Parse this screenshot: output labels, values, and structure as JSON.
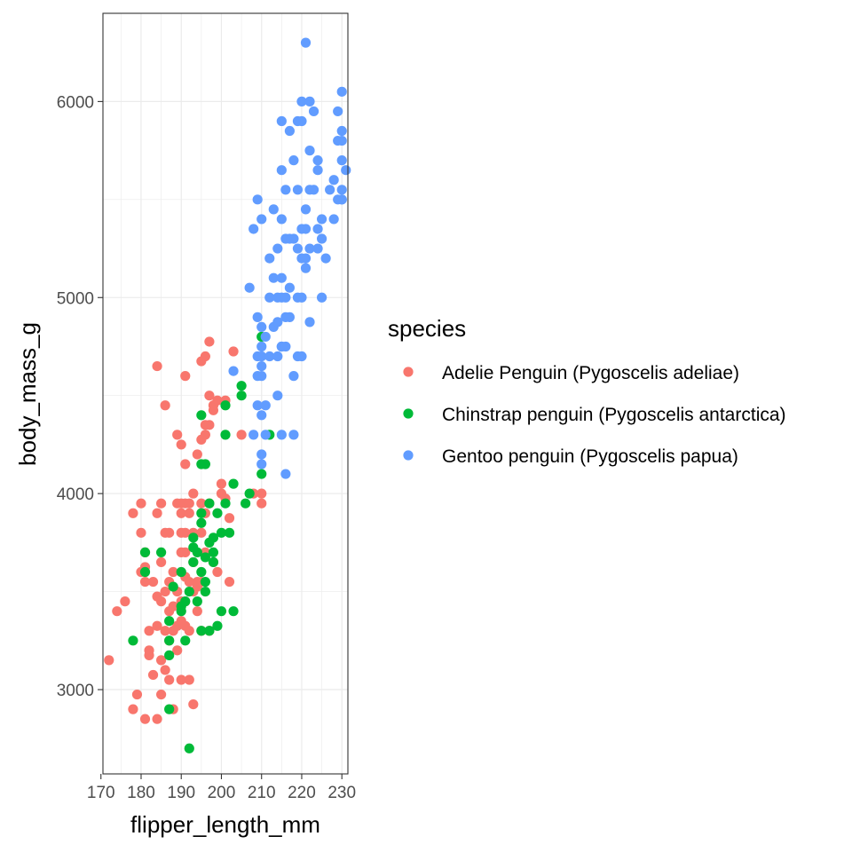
{
  "chart_data": {
    "type": "scatter",
    "xlabel": "flipper_length_mm",
    "ylabel": "body_mass_g",
    "xlim": [
      170.5,
      231.5
    ],
    "ylim": [
      2570,
      6450
    ],
    "x_ticks": [
      170,
      180,
      190,
      200,
      210,
      220,
      230
    ],
    "y_ticks": [
      3000,
      4000,
      5000,
      6000
    ],
    "grid": true,
    "legend": {
      "title": "species",
      "placement": "right"
    },
    "series": [
      {
        "name": "Adelie Penguin (Pygoscelis adeliae)",
        "color": "#F8766D",
        "points": [
          [
            172,
            3150
          ],
          [
            174,
            3400
          ],
          [
            176,
            3450
          ],
          [
            178,
            3900
          ],
          [
            178,
            2900
          ],
          [
            179,
            2975
          ],
          [
            180,
            3950
          ],
          [
            180,
            3800
          ],
          [
            180,
            3600
          ],
          [
            181,
            3700
          ],
          [
            181,
            3625
          ],
          [
            181,
            3550
          ],
          [
            181,
            2850
          ],
          [
            182,
            3175
          ],
          [
            182,
            3300
          ],
          [
            182,
            3200
          ],
          [
            183,
            3550
          ],
          [
            183,
            3075
          ],
          [
            184,
            3900
          ],
          [
            184,
            3475
          ],
          [
            184,
            3325
          ],
          [
            184,
            4650
          ],
          [
            184,
            2850
          ],
          [
            185,
            3950
          ],
          [
            185,
            3650
          ],
          [
            185,
            3150
          ],
          [
            185,
            3450
          ],
          [
            185,
            2975
          ],
          [
            186,
            3800
          ],
          [
            186,
            3300
          ],
          [
            186,
            3500
          ],
          [
            186,
            4450
          ],
          [
            186,
            3100
          ],
          [
            187,
            3800
          ],
          [
            187,
            3550
          ],
          [
            187,
            3400
          ],
          [
            187,
            3250
          ],
          [
            187,
            3050
          ],
          [
            188,
            3300
          ],
          [
            188,
            3600
          ],
          [
            188,
            3425
          ],
          [
            188,
            2900
          ],
          [
            189,
            3500
          ],
          [
            189,
            3950
          ],
          [
            189,
            3200
          ],
          [
            189,
            3325
          ],
          [
            189,
            4300
          ],
          [
            190,
            3800
          ],
          [
            190,
            3350
          ],
          [
            190,
            3450
          ],
          [
            190,
            3950
          ],
          [
            190,
            4250
          ],
          [
            190,
            3050
          ],
          [
            190,
            3700
          ],
          [
            190,
            3900
          ],
          [
            191,
            3800
          ],
          [
            191,
            3450
          ],
          [
            191,
            3700
          ],
          [
            191,
            4600
          ],
          [
            191,
            3950
          ],
          [
            191,
            3575
          ],
          [
            191,
            4150
          ],
          [
            191,
            3325
          ],
          [
            192,
            3900
          ],
          [
            192,
            3300
          ],
          [
            192,
            3050
          ],
          [
            192,
            3950
          ],
          [
            192,
            3550
          ],
          [
            193,
            3500
          ],
          [
            193,
            4000
          ],
          [
            193,
            3800
          ],
          [
            193,
            3650
          ],
          [
            193,
            2925
          ],
          [
            194,
            3400
          ],
          [
            194,
            3525
          ],
          [
            194,
            4200
          ],
          [
            194,
            3550
          ],
          [
            195,
            3800
          ],
          [
            195,
            3950
          ],
          [
            195,
            3300
          ],
          [
            195,
            3550
          ],
          [
            195,
            4675
          ],
          [
            195,
            4275
          ],
          [
            196,
            3700
          ],
          [
            196,
            4700
          ],
          [
            196,
            4350
          ],
          [
            196,
            3900
          ],
          [
            196,
            4300
          ],
          [
            197,
            3950
          ],
          [
            197,
            4350
          ],
          [
            197,
            4500
          ],
          [
            197,
            3300
          ],
          [
            197,
            4775
          ],
          [
            198,
            4450
          ],
          [
            198,
            3650
          ],
          [
            198,
            4425
          ],
          [
            199,
            4475
          ],
          [
            199,
            3600
          ],
          [
            200,
            4050
          ],
          [
            200,
            4000
          ],
          [
            201,
            3975
          ],
          [
            201,
            4475
          ],
          [
            202,
            3550
          ],
          [
            202,
            3875
          ],
          [
            203,
            4725
          ],
          [
            205,
            4300
          ],
          [
            208,
            4000
          ],
          [
            210,
            4000
          ],
          [
            210,
            3950
          ]
        ]
      },
      {
        "name": "Chinstrap penguin (Pygoscelis antarctica)",
        "color": "#00BA38",
        "points": [
          [
            178,
            3250
          ],
          [
            181,
            3600
          ],
          [
            181,
            3700
          ],
          [
            185,
            3700
          ],
          [
            187,
            3350
          ],
          [
            187,
            3250
          ],
          [
            187,
            3175
          ],
          [
            187,
            2900
          ],
          [
            188,
            3525
          ],
          [
            190,
            3600
          ],
          [
            190,
            3400
          ],
          [
            190,
            3425
          ],
          [
            191,
            3250
          ],
          [
            191,
            3450
          ],
          [
            192,
            3500
          ],
          [
            192,
            2700
          ],
          [
            193,
            3650
          ],
          [
            193,
            3725
          ],
          [
            193,
            3775
          ],
          [
            194,
            3450
          ],
          [
            194,
            3700
          ],
          [
            195,
            3900
          ],
          [
            195,
            3850
          ],
          [
            195,
            3600
          ],
          [
            195,
            3300
          ],
          [
            195,
            4150
          ],
          [
            195,
            4400
          ],
          [
            196,
            3550
          ],
          [
            196,
            4150
          ],
          [
            196,
            3500
          ],
          [
            196,
            3675
          ],
          [
            197,
            3750
          ],
          [
            197,
            3950
          ],
          [
            197,
            3300
          ],
          [
            198,
            3775
          ],
          [
            198,
            3700
          ],
          [
            198,
            3650
          ],
          [
            199,
            3900
          ],
          [
            199,
            3325
          ],
          [
            200,
            3400
          ],
          [
            200,
            3800
          ],
          [
            201,
            3950
          ],
          [
            201,
            4300
          ],
          [
            202,
            3800
          ],
          [
            203,
            4050
          ],
          [
            203,
            3400
          ],
          [
            205,
            4550
          ],
          [
            205,
            4500
          ],
          [
            206,
            3950
          ],
          [
            207,
            4000
          ],
          [
            210,
            4100
          ],
          [
            210,
            4800
          ],
          [
            212,
            4300
          ],
          [
            201,
            4450
          ]
        ]
      },
      {
        "name": "Gentoo penguin (Pygoscelis papua)",
        "color": "#619CFF",
        "points": [
          [
            203,
            4625
          ],
          [
            207,
            5050
          ],
          [
            208,
            4300
          ],
          [
            208,
            5350
          ],
          [
            209,
            5500
          ],
          [
            209,
            4600
          ],
          [
            209,
            4450
          ],
          [
            209,
            4700
          ],
          [
            209,
            4900
          ],
          [
            210,
            4400
          ],
          [
            210,
            4650
          ],
          [
            210,
            4200
          ],
          [
            210,
            4150
          ],
          [
            210,
            4750
          ],
          [
            210,
            4850
          ],
          [
            210,
            4600
          ],
          [
            210,
            4700
          ],
          [
            210,
            5400
          ],
          [
            211,
            4450
          ],
          [
            211,
            4800
          ],
          [
            211,
            4300
          ],
          [
            212,
            4700
          ],
          [
            212,
            5200
          ],
          [
            213,
            5100
          ],
          [
            213,
            4850
          ],
          [
            213,
            5450
          ],
          [
            214,
            4500
          ],
          [
            214,
            4875
          ],
          [
            214,
            5000
          ],
          [
            214,
            4700
          ],
          [
            215,
            5100
          ],
          [
            215,
            5400
          ],
          [
            215,
            5650
          ],
          [
            215,
            4750
          ],
          [
            215,
            5000
          ],
          [
            215,
            4750
          ],
          [
            215,
            4300
          ],
          [
            216,
            5550
          ],
          [
            216,
            5000
          ],
          [
            216,
            4750
          ],
          [
            216,
            4900
          ],
          [
            216,
            4100
          ],
          [
            217,
            4900
          ],
          [
            217,
            5850
          ],
          [
            217,
            5300
          ],
          [
            218,
            5700
          ],
          [
            218,
            4600
          ],
          [
            218,
            5300
          ],
          [
            218,
            4300
          ],
          [
            219,
            5250
          ],
          [
            219,
            4700
          ],
          [
            219,
            5000
          ],
          [
            219,
            5550
          ],
          [
            219,
            5900
          ],
          [
            220,
            5350
          ],
          [
            220,
            5200
          ],
          [
            220,
            5000
          ],
          [
            220,
            5900
          ],
          [
            220,
            6000
          ],
          [
            220,
            4700
          ],
          [
            221,
            5150
          ],
          [
            221,
            5450
          ],
          [
            221,
            5350
          ],
          [
            221,
            6300
          ],
          [
            221,
            5200
          ],
          [
            222,
            5550
          ],
          [
            222,
            5250
          ],
          [
            222,
            6000
          ],
          [
            222,
            5750
          ],
          [
            222,
            4875
          ],
          [
            223,
            5550
          ],
          [
            223,
            5950
          ],
          [
            224,
            5650
          ],
          [
            224,
            5350
          ],
          [
            224,
            5250
          ],
          [
            224,
            5700
          ],
          [
            225,
            5300
          ],
          [
            225,
            5400
          ],
          [
            225,
            5000
          ],
          [
            226,
            5200
          ],
          [
            227,
            5550
          ],
          [
            228,
            5600
          ],
          [
            228,
            5400
          ],
          [
            229,
            5500
          ],
          [
            229,
            5950
          ],
          [
            229,
            5800
          ],
          [
            230,
            5500
          ],
          [
            230,
            6050
          ],
          [
            230,
            5800
          ],
          [
            230,
            5550
          ],
          [
            230,
            5700
          ],
          [
            230,
            5850
          ],
          [
            230,
            5500
          ],
          [
            231,
            5650
          ],
          [
            215,
            5900
          ],
          [
            216,
            5300
          ],
          [
            212,
            5000
          ],
          [
            214,
            5250
          ],
          [
            217,
            5050
          ]
        ]
      }
    ]
  }
}
